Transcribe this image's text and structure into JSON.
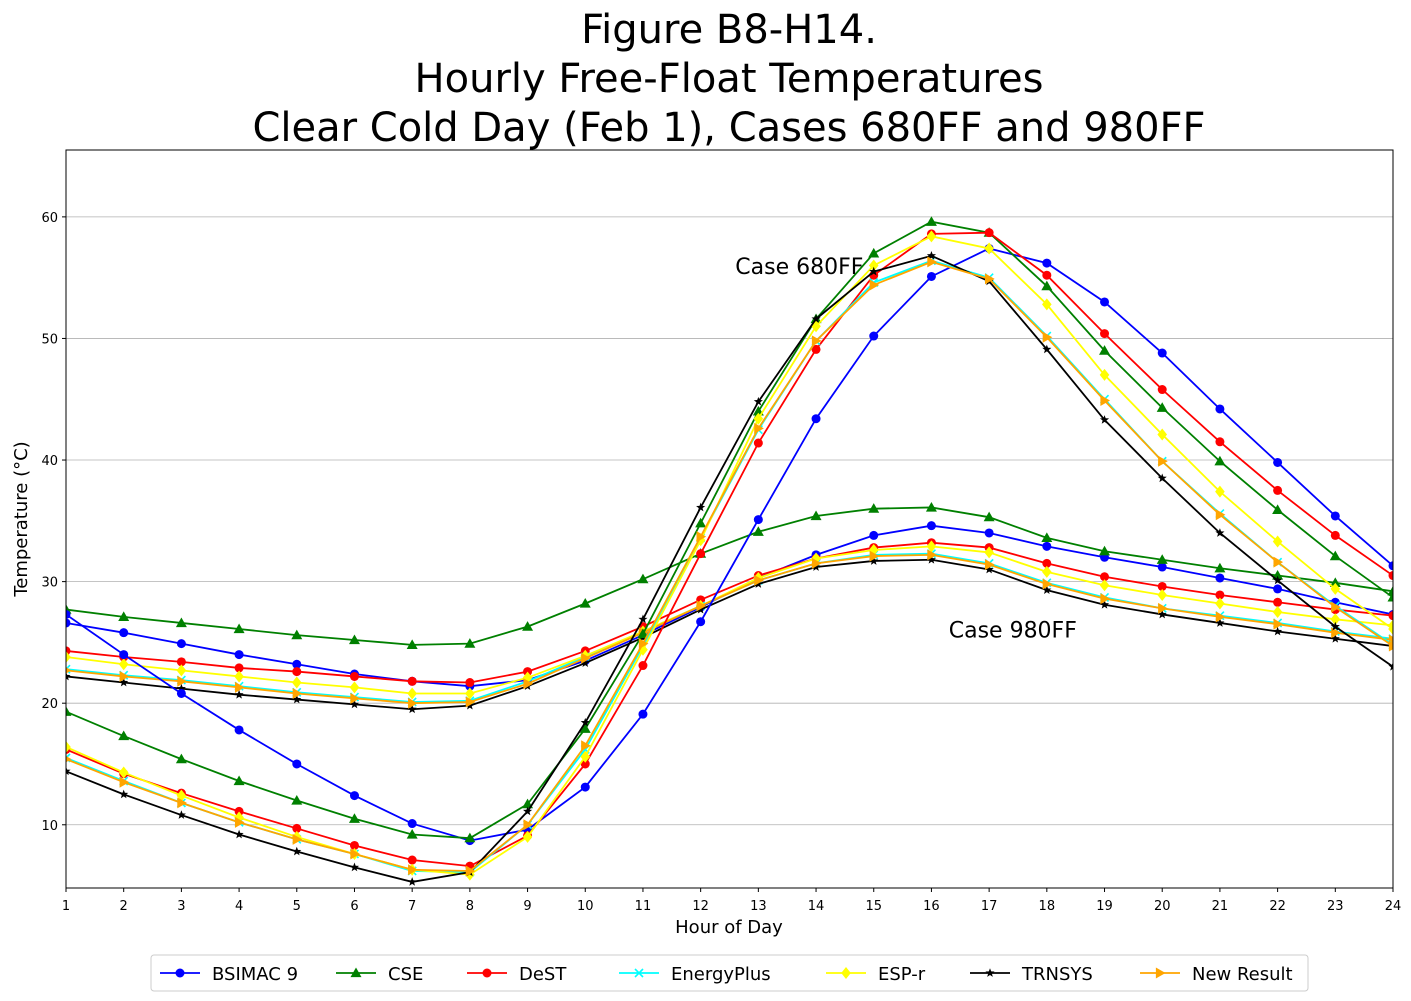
{
  "chart_data": {
    "type": "line",
    "title": [
      "Figure B8-H14.",
      "Hourly Free-Float Temperatures",
      "Clear Cold Day (Feb 1), Cases 680FF and 980FF"
    ],
    "xlabel": "Hour of Day",
    "ylabel": "Temperature (°C)",
    "x": [
      1,
      2,
      3,
      4,
      5,
      6,
      7,
      8,
      9,
      10,
      11,
      12,
      13,
      14,
      15,
      16,
      17,
      18,
      19,
      20,
      21,
      22,
      23,
      24
    ],
    "xlim": [
      1,
      24
    ],
    "ylim": [
      4.8,
      65.5
    ],
    "yticks": [
      10,
      20,
      30,
      40,
      50,
      60
    ],
    "grid": "horizontal",
    "legend_position": "below",
    "annotations": [
      {
        "text": "Case 680FF",
        "x": 12.6,
        "y": 55.3
      },
      {
        "text": "Case 980FF",
        "x": 16.3,
        "y": 25.4
      }
    ],
    "series": [
      {
        "name": "BSIMAC 9",
        "color": "#0000ff",
        "marker": "circle",
        "case_680FF": [
          27.3,
          24.0,
          20.8,
          17.8,
          15.0,
          12.4,
          10.1,
          8.7,
          9.6,
          13.1,
          19.1,
          26.7,
          35.1,
          43.4,
          50.2,
          55.1,
          57.4,
          56.2,
          53.0,
          48.8,
          44.2,
          39.8,
          35.4,
          31.3
        ],
        "case_980FF": [
          26.6,
          25.8,
          24.9,
          24.0,
          23.2,
          22.4,
          21.8,
          21.4,
          21.9,
          23.5,
          25.6,
          27.9,
          30.3,
          32.2,
          33.8,
          34.6,
          34.0,
          32.9,
          32.0,
          31.2,
          30.3,
          29.4,
          28.3,
          27.3
        ]
      },
      {
        "name": "CSE",
        "color": "#008000",
        "marker": "triangle",
        "case_680FF": [
          19.3,
          17.3,
          15.4,
          13.6,
          12.0,
          10.5,
          9.2,
          8.9,
          11.7,
          17.9,
          25.7,
          34.8,
          44.0,
          51.6,
          57.0,
          59.6,
          58.7,
          54.3,
          49.0,
          44.3,
          39.9,
          35.9,
          32.1,
          28.7
        ],
        "case_980FF": [
          27.7,
          27.1,
          26.6,
          26.1,
          25.6,
          25.2,
          24.8,
          24.9,
          26.3,
          28.2,
          30.2,
          32.3,
          34.1,
          35.4,
          36.0,
          36.1,
          35.3,
          33.6,
          32.5,
          31.8,
          31.1,
          30.5,
          29.9,
          29.2
        ]
      },
      {
        "name": "DeST",
        "color": "#ff0000",
        "marker": "circle",
        "case_680FF": [
          16.2,
          14.2,
          12.6,
          11.1,
          9.7,
          8.3,
          7.1,
          6.6,
          9.1,
          15.0,
          23.1,
          32.3,
          41.4,
          49.1,
          55.2,
          58.6,
          58.7,
          55.2,
          50.4,
          45.8,
          41.5,
          37.5,
          33.8,
          30.5
        ],
        "case_980FF": [
          24.3,
          23.8,
          23.4,
          22.9,
          22.6,
          22.2,
          21.8,
          21.7,
          22.6,
          24.3,
          26.3,
          28.5,
          30.5,
          31.9,
          32.8,
          33.2,
          32.8,
          31.5,
          30.4,
          29.6,
          28.9,
          28.3,
          27.7,
          27.2
        ]
      },
      {
        "name": "EnergyPlus",
        "color": "#00ffff",
        "marker": "x",
        "case_680FF": [
          15.5,
          13.6,
          11.8,
          10.2,
          8.8,
          7.6,
          6.2,
          6.1,
          10.0,
          16.2,
          24.7,
          33.6,
          42.5,
          49.8,
          54.6,
          56.4,
          55.0,
          50.2,
          45.0,
          39.9,
          35.6,
          31.6,
          28.0,
          24.8
        ],
        "case_980FF": [
          22.8,
          22.3,
          21.9,
          21.4,
          20.9,
          20.5,
          20.1,
          20.2,
          21.8,
          23.8,
          25.9,
          28.0,
          30.1,
          31.5,
          32.2,
          32.3,
          31.5,
          29.9,
          28.7,
          27.8,
          27.2,
          26.6,
          25.9,
          25.3
        ]
      },
      {
        "name": "ESP-r",
        "color": "#ffff00",
        "marker": "diamond",
        "case_680FF": [
          16.4,
          14.3,
          12.4,
          10.6,
          9.0,
          7.6,
          6.3,
          5.9,
          9.0,
          15.6,
          24.4,
          33.4,
          43.4,
          51.0,
          56.0,
          58.4,
          57.4,
          52.8,
          47.0,
          42.1,
          37.4,
          33.3,
          29.4,
          26.1
        ],
        "case_980FF": [
          23.8,
          23.2,
          22.7,
          22.2,
          21.7,
          21.3,
          20.8,
          20.8,
          22.1,
          23.9,
          25.9,
          28.0,
          30.3,
          31.9,
          32.6,
          32.9,
          32.4,
          30.8,
          29.7,
          28.9,
          28.2,
          27.5,
          26.9,
          26.4
        ]
      },
      {
        "name": "TRNSYS",
        "color": "#000000",
        "marker": "star",
        "case_680FF": [
          14.4,
          12.5,
          10.8,
          9.2,
          7.8,
          6.5,
          5.3,
          6.1,
          11.1,
          18.4,
          26.9,
          36.1,
          44.8,
          51.6,
          55.5,
          56.8,
          54.7,
          49.1,
          43.3,
          38.5,
          34.0,
          30.1,
          26.3,
          23.0
        ],
        "case_980FF": [
          22.2,
          21.7,
          21.2,
          20.7,
          20.3,
          19.9,
          19.5,
          19.8,
          21.4,
          23.3,
          25.4,
          27.7,
          29.8,
          31.2,
          31.7,
          31.8,
          31.0,
          29.3,
          28.1,
          27.3,
          26.6,
          25.9,
          25.3,
          24.7
        ]
      },
      {
        "name": "New Result",
        "color": "#ffa500",
        "marker": "triangle-right",
        "case_680FF": [
          15.4,
          13.5,
          11.8,
          10.2,
          8.8,
          7.6,
          6.3,
          6.2,
          10.0,
          16.5,
          24.9,
          33.7,
          42.6,
          49.8,
          54.4,
          56.3,
          54.9,
          50.1,
          44.9,
          39.9,
          35.5,
          31.6,
          27.9,
          24.7
        ],
        "case_980FF": [
          22.7,
          22.2,
          21.8,
          21.3,
          20.8,
          20.4,
          20.0,
          20.1,
          21.6,
          23.7,
          25.8,
          28.0,
          30.1,
          31.5,
          32.1,
          32.2,
          31.4,
          29.8,
          28.6,
          27.8,
          27.1,
          26.5,
          25.8,
          25.2
        ]
      }
    ]
  }
}
